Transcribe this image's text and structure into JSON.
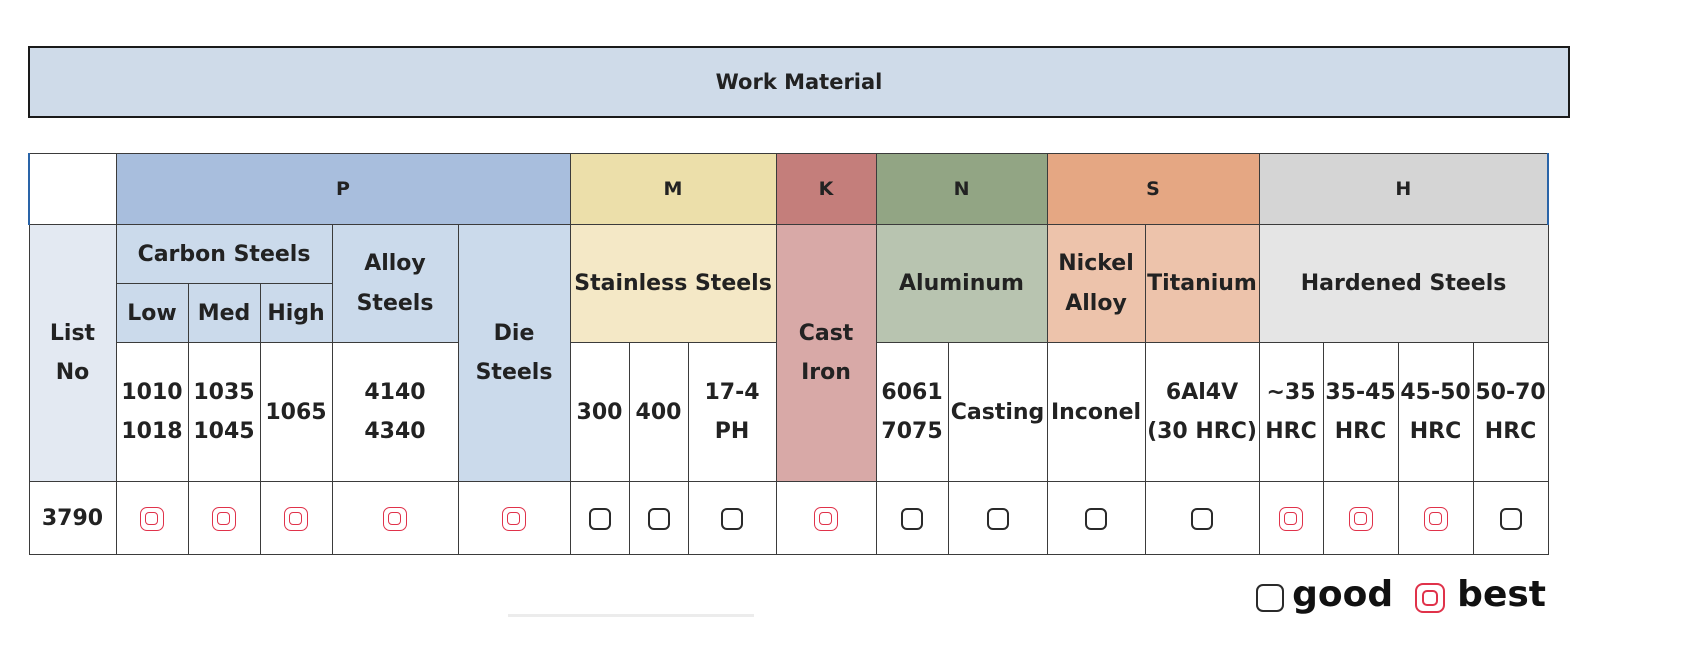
{
  "banner": {
    "title": "Work Material"
  },
  "groups": [
    "P",
    "M",
    "K",
    "N",
    "S",
    "H"
  ],
  "list_header": "List No",
  "categories": {
    "carbon_steels": "Carbon Steels",
    "alloy_steels": "Alloy Steels",
    "die_steels": "Die Steels",
    "stainless_steels": "Stainless Steels",
    "cast_iron": "Cast Iron",
    "aluminum": "Aluminum",
    "nickel_alloy": "Nickel Alloy",
    "titanium": "Titanium",
    "hardened_steels": "Hardened Steels"
  },
  "subcategories": {
    "low": "Low",
    "med": "Med",
    "high": "High"
  },
  "grades": {
    "low": "1010 1018",
    "med": "1035 1045",
    "high": "1065",
    "alloy": "4140 4340",
    "ss300": "300",
    "ss400": "400",
    "ss174": "17-4 PH",
    "al_wrought": "6061 7075",
    "al_casting": "Casting",
    "inconel": "Inconel",
    "ti": "6Al4V (30 HRC)",
    "h35": "~35 HRC",
    "h3545": "35-45 HRC",
    "h4550": "45-50 HRC",
    "h5070": "50-70 HRC"
  },
  "row": {
    "list_no": "3790",
    "ratings": [
      "best",
      "best",
      "best",
      "best",
      "best",
      "good",
      "good",
      "good",
      "best",
      "good",
      "good",
      "good",
      "good",
      "best",
      "best",
      "best",
      "good"
    ]
  },
  "legend": {
    "good": "good",
    "best": "best"
  },
  "colors": {
    "P": "#a8bedd",
    "M": "#ecdfaa",
    "K": "#c47e7b",
    "N": "#92a584",
    "S": "#e5a783",
    "H": "#d5d5d5",
    "best_icon": "#e0324a",
    "good_icon": "#2a2a2a"
  },
  "icons": {
    "good": "rounded-square-icon",
    "best": "double-rounded-square-icon"
  }
}
